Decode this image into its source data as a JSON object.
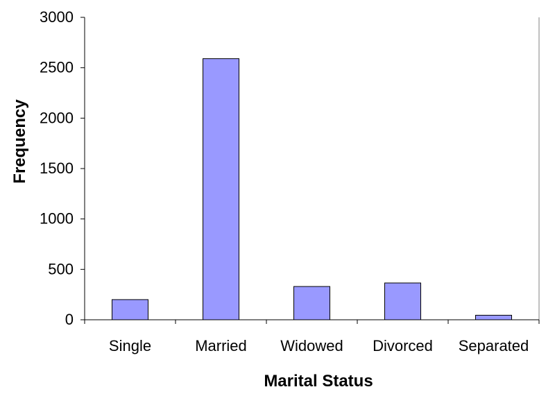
{
  "chart_data": {
    "type": "bar",
    "title": "",
    "xlabel": "Marital Status",
    "ylabel": "Frequency",
    "categories": [
      "Single",
      "Married",
      "Widowed",
      "Divorced",
      "Separated"
    ],
    "values": [
      200,
      2590,
      330,
      365,
      45
    ],
    "ylim": [
      0,
      3000
    ],
    "yticks": [
      0,
      500,
      1000,
      1500,
      2000,
      2500,
      3000
    ],
    "grid": false,
    "legend": "none",
    "colors": {
      "bar_fill": "#9999ff",
      "bar_stroke": "#000000",
      "axis": "#000000"
    }
  }
}
